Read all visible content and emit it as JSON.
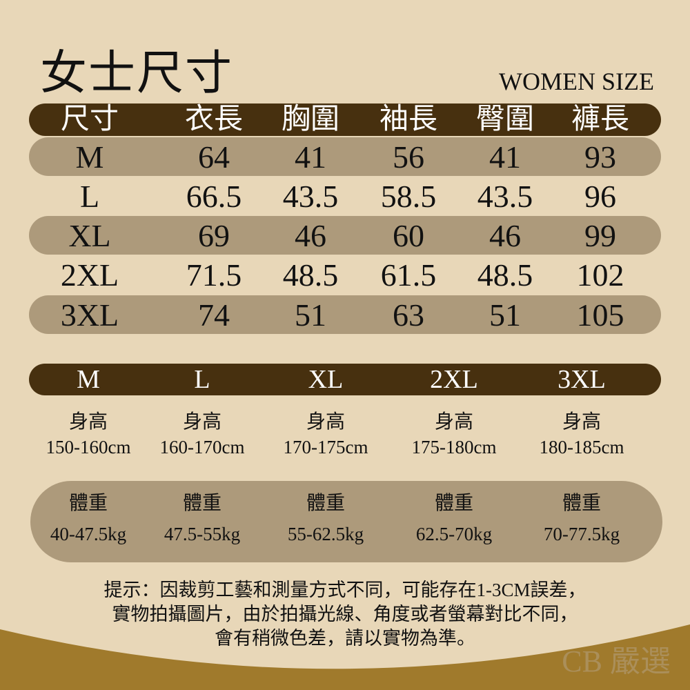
{
  "title": "女士尺寸",
  "subtitle": "WOMEN SIZE",
  "colors": {
    "background": "#e8d7b8",
    "header_bar": "#47300f",
    "band": "#ad9a7b",
    "wave": "#a07a2c"
  },
  "size_table": {
    "headers": [
      "尺寸",
      "衣長",
      "胸圍",
      "袖長",
      "臀圍",
      "褲長"
    ],
    "rows": [
      [
        "M",
        "64",
        "41",
        "56",
        "41",
        "93"
      ],
      [
        "L",
        "66.5",
        "43.5",
        "58.5",
        "43.5",
        "96"
      ],
      [
        "XL",
        "69",
        "46",
        "60",
        "46",
        "99"
      ],
      [
        "2XL",
        "71.5",
        "48.5",
        "61.5",
        "48.5",
        "102"
      ],
      [
        "3XL",
        "74",
        "51",
        "63",
        "51",
        "105"
      ]
    ]
  },
  "recommend": {
    "sizes": [
      "M",
      "L",
      "XL",
      "2XL",
      "3XL"
    ],
    "height_label": "身高",
    "heights": [
      "150-160cm",
      "160-170cm",
      "170-175cm",
      "175-180cm",
      "180-185cm"
    ],
    "weight_label": "體重",
    "weights": [
      "40-47.5kg",
      "47.5-55kg",
      "55-62.5kg",
      "62.5-70kg",
      "70-77.5kg"
    ]
  },
  "note": [
    "提示：因裁剪工藝和測量方式不同，可能存在1-3CM誤差，",
    "實物拍攝圖片，由於拍攝光線、角度或者螢幕對比不同，",
    "會有稍微色差，請以實物為準。"
  ],
  "watermark": "CB 嚴選"
}
